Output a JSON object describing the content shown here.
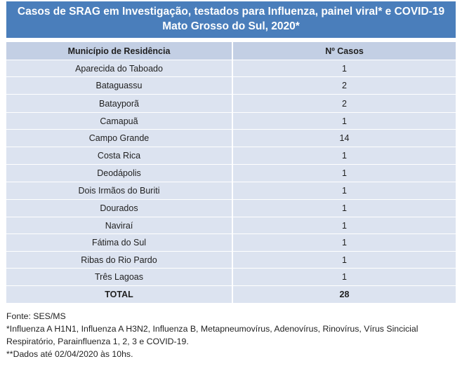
{
  "title": {
    "line1": "Casos de SRAG em Investigação, testados para Influenza, painel viral* e COVID-19",
    "line2": "Mato Grosso do Sul, 2020*"
  },
  "table": {
    "headers": [
      "Município de Residência",
      "Nº Casos"
    ],
    "rows": [
      {
        "municipio": "Aparecida do Taboado",
        "casos": "1"
      },
      {
        "municipio": "Bataguassu",
        "casos": "2"
      },
      {
        "municipio": "Batayporã",
        "casos": "2"
      },
      {
        "municipio": "Camapuã",
        "casos": "1"
      },
      {
        "municipio": "Campo Grande",
        "casos": "14"
      },
      {
        "municipio": "Costa Rica",
        "casos": "1"
      },
      {
        "municipio": "Deodápolis",
        "casos": "1"
      },
      {
        "municipio": "Dois Irmãos do Buriti",
        "casos": "1"
      },
      {
        "municipio": "Dourados",
        "casos": "1"
      },
      {
        "municipio": "Naviraí",
        "casos": "1"
      },
      {
        "municipio": "Fátima do Sul",
        "casos": "1"
      },
      {
        "municipio": "Ribas do Rio Pardo",
        "casos": "1"
      },
      {
        "municipio": "Três Lagoas",
        "casos": "1"
      }
    ],
    "total_label": "TOTAL",
    "total_value": "28"
  },
  "notes": {
    "source": "Fonte: SES/MS",
    "footnote1": "*Influenza A H1N1, Influenza A H3N2, Influenza B, Metapneumovírus, Adenovírus, Rinovírus, Vírus Sincicial Respiratório, Parainfluenza 1, 2, 3 e COVID-19.",
    "footnote2": "**Dados até 02/04/2020 às 10hs."
  }
}
